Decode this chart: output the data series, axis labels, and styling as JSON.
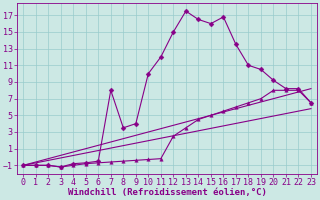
{
  "xlabel": "Windchill (Refroidissement éolien,°C)",
  "background_color": "#cce8e4",
  "line_color": "#880088",
  "grid_color": "#99cccc",
  "xlim": [
    -0.5,
    23.5
  ],
  "ylim": [
    -2.0,
    18.5
  ],
  "xticks": [
    0,
    1,
    2,
    3,
    4,
    5,
    6,
    7,
    8,
    9,
    10,
    11,
    12,
    13,
    14,
    15,
    16,
    17,
    18,
    19,
    20,
    21,
    22,
    23
  ],
  "yticks": [
    -1,
    1,
    3,
    5,
    7,
    9,
    11,
    13,
    15,
    17
  ],
  "line1_x": [
    0,
    1,
    2,
    3,
    4,
    5,
    6,
    7,
    8,
    9,
    10,
    11,
    12,
    13,
    14,
    15,
    16,
    17,
    18,
    19,
    20,
    21,
    22,
    23
  ],
  "line1_y": [
    -1,
    -1,
    -1,
    -1.2,
    -0.8,
    -0.7,
    -0.5,
    8,
    3.5,
    4,
    10,
    12,
    15,
    17.5,
    16.5,
    16,
    16.8,
    13.5,
    11,
    10.5,
    9.2,
    8.2,
    8.2,
    6.5
  ],
  "line2_x": [
    0,
    1,
    2,
    3,
    4,
    5,
    6,
    7,
    8,
    9,
    10,
    11,
    12,
    13,
    14,
    15,
    16,
    17,
    18,
    19,
    20,
    21,
    22,
    23
  ],
  "line2_y": [
    -1,
    -1,
    -1,
    -1.2,
    -1,
    -0.8,
    -0.7,
    -0.6,
    -0.5,
    -0.4,
    -0.3,
    -0.2,
    2.5,
    3.5,
    4.5,
    5,
    5.5,
    6,
    6.5,
    7,
    8,
    8,
    8,
    6.5
  ],
  "line3_x": [
    0,
    23
  ],
  "line3_y": [
    -1,
    8.2
  ],
  "line4_x": [
    0,
    23
  ],
  "line4_y": [
    -1,
    5.8
  ],
  "font_size": 6.5,
  "marker_size": 2.5,
  "linewidth": 0.8
}
